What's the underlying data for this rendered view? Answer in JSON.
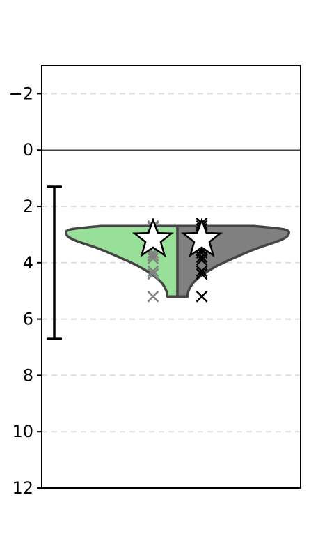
{
  "chart_data": {
    "type": "violin",
    "title": "",
    "xlabel": "",
    "ylabel": "",
    "ylim": [
      -3,
      12
    ],
    "y_inverted": true,
    "yticks": [
      -2,
      0,
      2,
      4,
      6,
      8,
      10,
      12
    ],
    "ytick_labels": [
      "−2",
      "0",
      "2",
      "4",
      "6",
      "8",
      "10",
      "12"
    ],
    "grid": "horizontal-dashed",
    "reference_line_y": 0,
    "error_bar": {
      "low": 1.3,
      "high": 6.7
    },
    "violin": {
      "y_top": 2.7,
      "y_bottom": 5.2,
      "halves": [
        {
          "side": "left",
          "color": "#98e09a",
          "profile": [
            {
              "y": 2.7,
              "w": 0.38
            },
            {
              "y": 2.82,
              "w": 0.53
            },
            {
              "y": 3.0,
              "w": 0.55
            },
            {
              "y": 3.2,
              "w": 0.51
            },
            {
              "y": 3.5,
              "w": 0.39
            },
            {
              "y": 3.8,
              "w": 0.29
            },
            {
              "y": 4.1,
              "w": 0.2
            },
            {
              "y": 4.4,
              "w": 0.13
            },
            {
              "y": 4.7,
              "w": 0.08
            },
            {
              "y": 5.0,
              "w": 0.055
            },
            {
              "y": 5.2,
              "w": 0.05
            }
          ]
        },
        {
          "side": "right",
          "color": "#808080",
          "profile": [
            {
              "y": 2.7,
              "w": 0.38
            },
            {
              "y": 2.82,
              "w": 0.53
            },
            {
              "y": 3.0,
              "w": 0.55
            },
            {
              "y": 3.2,
              "w": 0.51
            },
            {
              "y": 3.5,
              "w": 0.39
            },
            {
              "y": 3.8,
              "w": 0.29
            },
            {
              "y": 4.1,
              "w": 0.2
            },
            {
              "y": 4.4,
              "w": 0.13
            },
            {
              "y": 4.7,
              "w": 0.08
            },
            {
              "y": 5.0,
              "w": 0.055
            },
            {
              "y": 5.2,
              "w": 0.05
            }
          ]
        }
      ]
    },
    "series": [
      {
        "side": "left",
        "marker_color": "#808080",
        "points": [
          2.7,
          2.75,
          3.0,
          3.05,
          3.1,
          3.65,
          3.75,
          3.85,
          4.3,
          4.4,
          5.2
        ],
        "mean": 3.1
      },
      {
        "side": "right",
        "marker_color": "#000000",
        "points": [
          2.6,
          2.7,
          2.8,
          3.0,
          3.05,
          3.55,
          3.65,
          3.8,
          3.9,
          4.3,
          4.4,
          5.2
        ],
        "mean": 3.1
      }
    ]
  }
}
